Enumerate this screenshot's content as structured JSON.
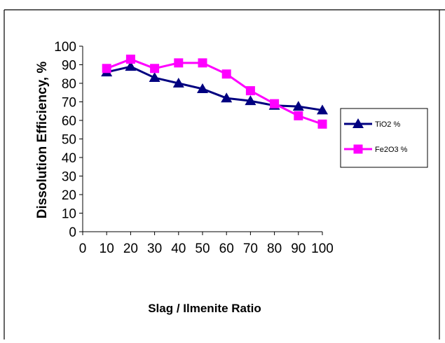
{
  "chart_data": {
    "type": "line",
    "title": "",
    "xlabel": "Slag / Ilmenite Ratio",
    "ylabel": "Dissolution Efficiency, %",
    "xlim": [
      0,
      100
    ],
    "ylim": [
      0,
      100
    ],
    "x_ticks": [
      "0",
      "10",
      "20",
      "30",
      "40",
      "50",
      "60",
      "70",
      "80",
      "90",
      "100"
    ],
    "y_ticks": [
      "0",
      "10",
      "20",
      "30",
      "40",
      "50",
      "60",
      "70",
      "80",
      "90",
      "100"
    ],
    "categories": [
      10,
      20,
      30,
      40,
      50,
      60,
      70,
      80,
      90,
      100
    ],
    "grid": false,
    "legend_position": "right",
    "series": [
      {
        "name": "TiO2 %",
        "marker": "triangle",
        "color": "#000080",
        "values": [
          86,
          89,
          83,
          80,
          77,
          72,
          70.5,
          68,
          67.5,
          65.5
        ]
      },
      {
        "name": "Fe2O3 %",
        "marker": "square",
        "color": "#FF00FF",
        "values": [
          88,
          93,
          88,
          91,
          91,
          85,
          76,
          69,
          62.5,
          58
        ]
      }
    ]
  }
}
